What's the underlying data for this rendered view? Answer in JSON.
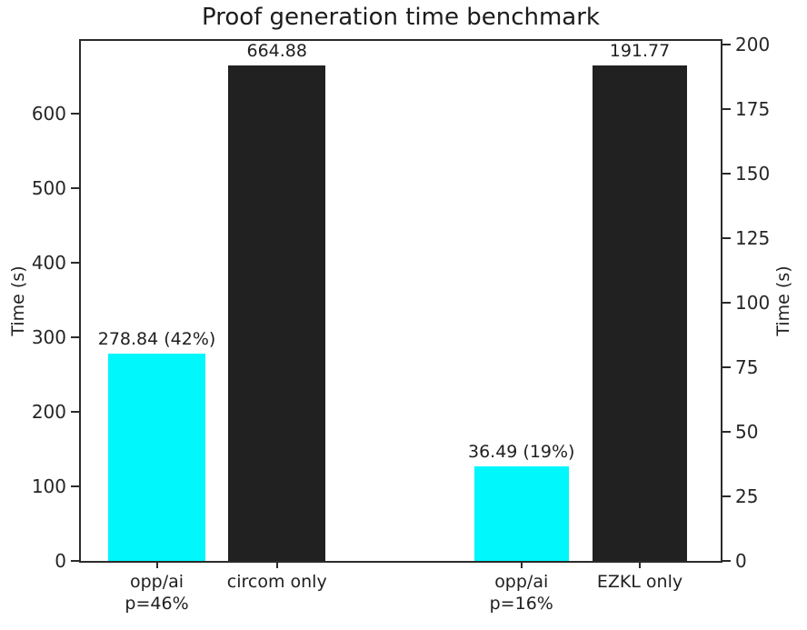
{
  "chart_data": {
    "type": "bar",
    "title": "Proof generation time benchmark",
    "grid": false,
    "legend": null,
    "colors": {
      "cyan": "#00f7fb",
      "black": "#212121"
    },
    "left_axis": {
      "label": "Time (s)",
      "lim": [
        0,
        698
      ],
      "ticks": [
        {
          "v": 0,
          "label": "0"
        },
        {
          "v": 100,
          "label": "100"
        },
        {
          "v": 200,
          "label": "200"
        },
        {
          "v": 300,
          "label": "300"
        },
        {
          "v": 400,
          "label": "400"
        },
        {
          "v": 500,
          "label": "500"
        },
        {
          "v": 600,
          "label": "600"
        }
      ]
    },
    "right_axis": {
      "label": "Time (s)",
      "lim": [
        0,
        201.4
      ],
      "ticks": [
        {
          "v": 0,
          "label": "0"
        },
        {
          "v": 25,
          "label": "25"
        },
        {
          "v": 50,
          "label": "50"
        },
        {
          "v": 75,
          "label": "75"
        },
        {
          "v": 100,
          "label": "100"
        },
        {
          "v": 125,
          "label": "125"
        },
        {
          "v": 150,
          "label": "150"
        },
        {
          "v": 175,
          "label": "175"
        },
        {
          "v": 200,
          "label": "200"
        }
      ]
    },
    "bars": [
      {
        "category_lines": [
          "opp/ai",
          "p=46%"
        ],
        "value": 278.84,
        "annotation": "278.84 (42%)",
        "color_key": "cyan",
        "axis": "left",
        "x_frac": 0.0424,
        "w_frac": 0.1525
      },
      {
        "category_lines": [
          "circom only"
        ],
        "value": 664.88,
        "annotation": "664.88",
        "color_key": "black",
        "axis": "left",
        "x_frac": 0.2302,
        "w_frac": 0.1525
      },
      {
        "category_lines": [
          "opp/ai",
          "p=16%"
        ],
        "value": 36.49,
        "annotation": "36.49 (19%)",
        "color_key": "cyan",
        "axis": "right",
        "x_frac": 0.6144,
        "w_frac": 0.1483
      },
      {
        "category_lines": [
          "EZKL only"
        ],
        "value": 191.77,
        "annotation": "191.77",
        "color_key": "black",
        "axis": "right",
        "x_frac": 0.7994,
        "w_frac": 0.1483
      }
    ]
  }
}
